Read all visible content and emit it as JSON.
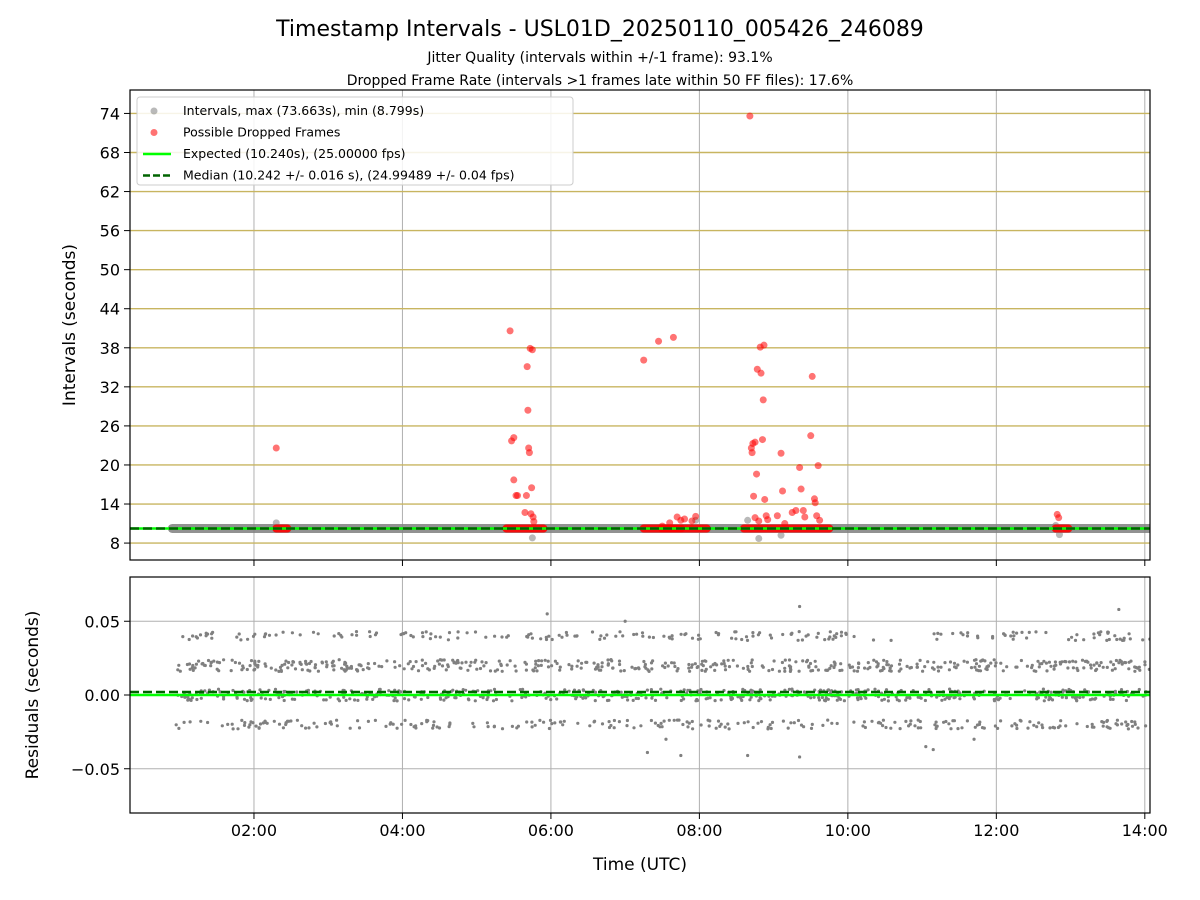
{
  "figure": {
    "title": "Timestamp Intervals - USL01D_20250110_005426_246089",
    "subtitle_1": "Jitter Quality (intervals within +/-1 frame): 93.1%",
    "subtitle_2": "Dropped Frame Rate (intervals >1 frames late within 50 FF files): 17.6%"
  },
  "colors": {
    "grid": "#b0b0b0",
    "hline": "#c8b560",
    "normal": "#808080",
    "dropped": "#ff0000",
    "expected": "#00ff00",
    "median": "#006400"
  },
  "chart_data": [
    {
      "type": "scatter",
      "name": "intervals",
      "xlabel": "",
      "ylabel": "Intervals (seconds)",
      "xlim": [
        0.33,
        14.07
      ],
      "ylim": [
        5.4,
        77.6
      ],
      "xticks": [
        2,
        4,
        6,
        8,
        10,
        12,
        14
      ],
      "xtick_labels": [
        "02:00",
        "04:00",
        "06:00",
        "08:00",
        "10:00",
        "12:00",
        "14:00"
      ],
      "yticks": [
        8,
        14,
        20,
        26,
        32,
        38,
        44,
        50,
        56,
        62,
        68,
        74
      ],
      "ytick_labels": [
        "8",
        "14",
        "20",
        "26",
        "32",
        "38",
        "44",
        "50",
        "56",
        "62",
        "68",
        "74"
      ],
      "hlines": [
        8,
        14,
        20,
        26,
        32,
        38,
        44,
        50,
        56,
        62,
        68,
        74
      ],
      "grid": true,
      "legend_position": "top-left",
      "legend": [
        {
          "label": "Intervals, max (73.663s), min (8.799s)",
          "kind": "marker",
          "color": "#808080"
        },
        {
          "label": "Possible Dropped Frames",
          "kind": "marker",
          "color": "#ff0000"
        },
        {
          "label": "Expected (10.240s), (25.00000 fps)",
          "kind": "solid",
          "color": "#00ff00"
        },
        {
          "label": "Median (10.242 +/- 0.016 s), (24.99489 +/- 0.04 fps)",
          "kind": "dashed",
          "color": "#006400"
        }
      ],
      "expected": 10.24,
      "median": 10.242,
      "normal_band": {
        "x": [
          0.9,
          14.07
        ],
        "y": 10.24
      },
      "dropped_bands": [
        [
          2.3,
          2.45
        ],
        [
          5.4,
          5.9
        ],
        [
          7.25,
          7.75
        ],
        [
          7.5,
          8.1
        ],
        [
          8.6,
          9.75
        ],
        [
          12.8,
          12.97
        ]
      ],
      "normal_outliers": [
        {
          "x": 2.3,
          "y": 11.1
        },
        {
          "x": 5.75,
          "y": 8.8
        },
        {
          "x": 7.95,
          "y": 11.5
        },
        {
          "x": 8.65,
          "y": 11.5
        },
        {
          "x": 8.8,
          "y": 8.7
        },
        {
          "x": 9.1,
          "y": 9.2
        },
        {
          "x": 12.8,
          "y": 10.7
        },
        {
          "x": 12.85,
          "y": 9.3
        }
      ],
      "dropped_points": [
        {
          "x": 2.3,
          "y": 22.6
        },
        {
          "x": 5.45,
          "y": 40.6
        },
        {
          "x": 5.47,
          "y": 23.7
        },
        {
          "x": 5.5,
          "y": 24.2
        },
        {
          "x": 5.5,
          "y": 17.7
        },
        {
          "x": 5.53,
          "y": 15.3
        },
        {
          "x": 5.55,
          "y": 15.3
        },
        {
          "x": 5.65,
          "y": 12.7
        },
        {
          "x": 5.67,
          "y": 15.3
        },
        {
          "x": 5.68,
          "y": 35.1
        },
        {
          "x": 5.69,
          "y": 28.4
        },
        {
          "x": 5.7,
          "y": 22.6
        },
        {
          "x": 5.71,
          "y": 21.9
        },
        {
          "x": 5.72,
          "y": 37.9
        },
        {
          "x": 5.73,
          "y": 12.5
        },
        {
          "x": 5.74,
          "y": 16.5
        },
        {
          "x": 5.75,
          "y": 37.7
        },
        {
          "x": 5.76,
          "y": 12.0
        },
        {
          "x": 5.77,
          "y": 11.3
        },
        {
          "x": 7.25,
          "y": 36.1
        },
        {
          "x": 7.45,
          "y": 39.0
        },
        {
          "x": 7.5,
          "y": 10.6
        },
        {
          "x": 7.6,
          "y": 11.1
        },
        {
          "x": 7.65,
          "y": 39.6
        },
        {
          "x": 7.7,
          "y": 12.0
        },
        {
          "x": 7.75,
          "y": 11.5
        },
        {
          "x": 7.8,
          "y": 11.7
        },
        {
          "x": 7.9,
          "y": 11.4
        },
        {
          "x": 7.95,
          "y": 12.1
        },
        {
          "x": 8.68,
          "y": 73.6
        },
        {
          "x": 8.7,
          "y": 22.6
        },
        {
          "x": 8.71,
          "y": 21.9
        },
        {
          "x": 8.72,
          "y": 23.3
        },
        {
          "x": 8.73,
          "y": 15.2
        },
        {
          "x": 8.75,
          "y": 23.5
        },
        {
          "x": 8.75,
          "y": 11.9
        },
        {
          "x": 8.77,
          "y": 18.6
        },
        {
          "x": 8.78,
          "y": 34.7
        },
        {
          "x": 8.8,
          "y": 11.4
        },
        {
          "x": 8.82,
          "y": 38.1
        },
        {
          "x": 8.83,
          "y": 34.1
        },
        {
          "x": 8.85,
          "y": 23.9
        },
        {
          "x": 8.86,
          "y": 30.0
        },
        {
          "x": 8.87,
          "y": 38.4
        },
        {
          "x": 8.88,
          "y": 14.7
        },
        {
          "x": 8.9,
          "y": 12.2
        },
        {
          "x": 8.92,
          "y": 11.6
        },
        {
          "x": 9.05,
          "y": 12.2
        },
        {
          "x": 9.1,
          "y": 21.8
        },
        {
          "x": 9.12,
          "y": 16.0
        },
        {
          "x": 9.15,
          "y": 11.0
        },
        {
          "x": 9.25,
          "y": 12.7
        },
        {
          "x": 9.3,
          "y": 13.0
        },
        {
          "x": 9.35,
          "y": 19.6
        },
        {
          "x": 9.37,
          "y": 16.3
        },
        {
          "x": 9.4,
          "y": 13.0
        },
        {
          "x": 9.42,
          "y": 12.0
        },
        {
          "x": 9.5,
          "y": 24.5
        },
        {
          "x": 9.52,
          "y": 33.6
        },
        {
          "x": 9.55,
          "y": 14.8
        },
        {
          "x": 9.56,
          "y": 14.2
        },
        {
          "x": 9.58,
          "y": 12.2
        },
        {
          "x": 9.6,
          "y": 19.9
        },
        {
          "x": 9.62,
          "y": 11.5
        },
        {
          "x": 12.82,
          "y": 12.4
        },
        {
          "x": 12.84,
          "y": 11.9
        }
      ]
    },
    {
      "type": "scatter",
      "name": "residuals",
      "xlabel": "Time (UTC)",
      "ylabel": "Residuals (seconds)",
      "xlim": [
        0.33,
        14.07
      ],
      "ylim": [
        -0.08,
        0.08
      ],
      "xticks": [
        2,
        4,
        6,
        8,
        10,
        12,
        14
      ],
      "xtick_labels": [
        "02:00",
        "04:00",
        "06:00",
        "08:00",
        "10:00",
        "12:00",
        "14:00"
      ],
      "yticks": [
        -0.05,
        0.0,
        0.05
      ],
      "ytick_labels": [
        "−0.05",
        "0.00",
        "0.05"
      ],
      "grid": true,
      "expected_residual": 0.0,
      "median_residual": 0.002,
      "bands": [
        {
          "center": 0.0,
          "spread": 0.004
        },
        {
          "center": 0.02,
          "spread": 0.004
        },
        {
          "center": -0.02,
          "spread": 0.003
        },
        {
          "center": 0.04,
          "spread": 0.003
        }
      ],
      "x_range": [
        0.95,
        14.07
      ],
      "outliers": [
        {
          "x": 5.95,
          "y": 0.055
        },
        {
          "x": 9.35,
          "y": 0.06
        },
        {
          "x": 13.65,
          "y": 0.058
        },
        {
          "x": 7.3,
          "y": -0.039
        },
        {
          "x": 7.75,
          "y": -0.041
        },
        {
          "x": 8.65,
          "y": -0.041
        },
        {
          "x": 9.35,
          "y": -0.042
        },
        {
          "x": 11.05,
          "y": -0.035
        },
        {
          "x": 11.15,
          "y": -0.037
        },
        {
          "x": 7.0,
          "y": 0.05
        },
        {
          "x": 7.55,
          "y": -0.03
        },
        {
          "x": 11.7,
          "y": -0.03
        }
      ]
    }
  ]
}
